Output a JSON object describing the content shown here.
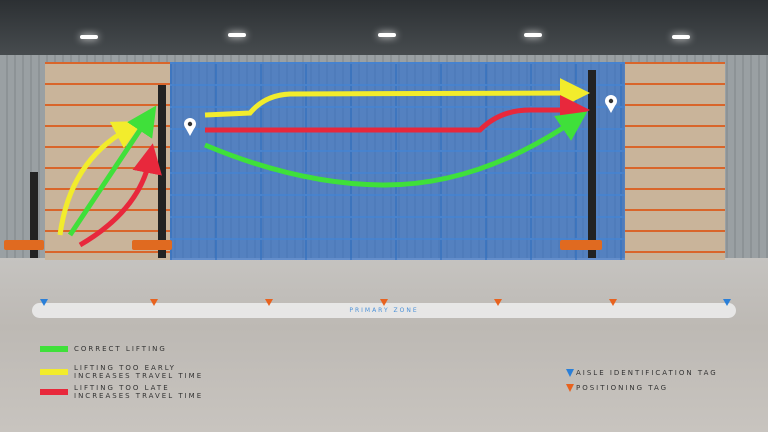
{
  "zone_label": "PRIMARY ZONE",
  "legend": [
    {
      "label": "CORRECT LIFTING",
      "color": "#3fe03a"
    },
    {
      "label": "LIFTING TOO EARLY\nINCREASES TRAVEL TIME",
      "color": "#f2ec2c"
    },
    {
      "label": "LIFTING TOO LATE\nINCREASES TRAVEL TIME",
      "color": "#e8283c"
    }
  ],
  "tag_legend": [
    {
      "label": "AISLE IDENTIFICATION TAG",
      "color": "#2a7fd8"
    },
    {
      "label": "POSITIONING TAG",
      "color": "#e8621e"
    }
  ],
  "tags": [
    "aisle",
    "positioning",
    "positioning",
    "positioning",
    "positioning",
    "positioning",
    "aisle"
  ]
}
